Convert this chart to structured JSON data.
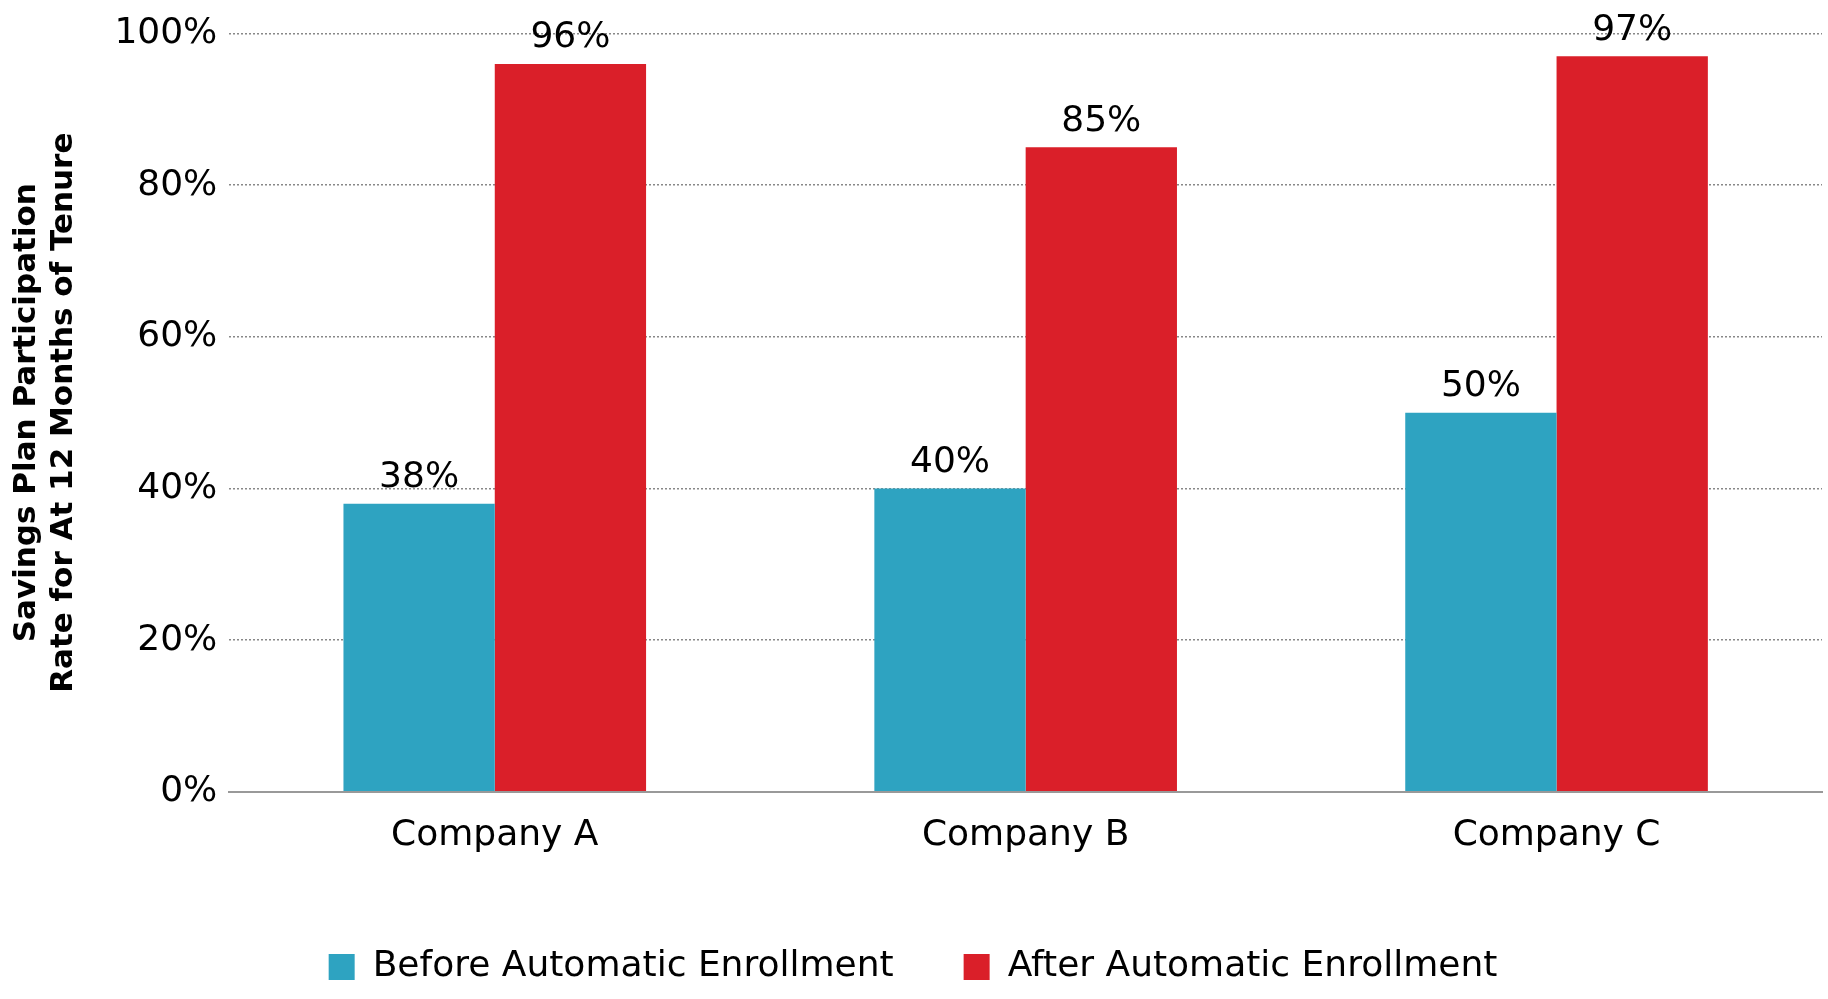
{
  "chart_data": {
    "type": "bar",
    "ylabel": "Savings Plan Participation Rate for At 12 Months of Tenure",
    "categories": [
      "Company A",
      "Company B",
      "Company C"
    ],
    "series": [
      {
        "name": "Before Automatic Enrollment",
        "color": "#2ea3c1",
        "values": [
          38,
          40,
          50
        ]
      },
      {
        "name": "After Automatic Enrollment",
        "color": "#da1f29",
        "values": [
          96,
          85,
          97
        ]
      }
    ],
    "ylim": [
      0,
      100
    ],
    "yticks": [
      {
        "value": 0,
        "label": "0%"
      },
      {
        "value": 20,
        "label": "20%"
      },
      {
        "value": 40,
        "label": "40%"
      },
      {
        "value": 60,
        "label": "60%"
      },
      {
        "value": 80,
        "label": "80%"
      },
      {
        "value": 100,
        "label": "100%"
      }
    ],
    "value_labels": [
      [
        "38%",
        "40%",
        "50%"
      ],
      [
        "96%",
        "85%",
        "97%"
      ]
    ],
    "grid": "y",
    "legend": "bottom"
  }
}
